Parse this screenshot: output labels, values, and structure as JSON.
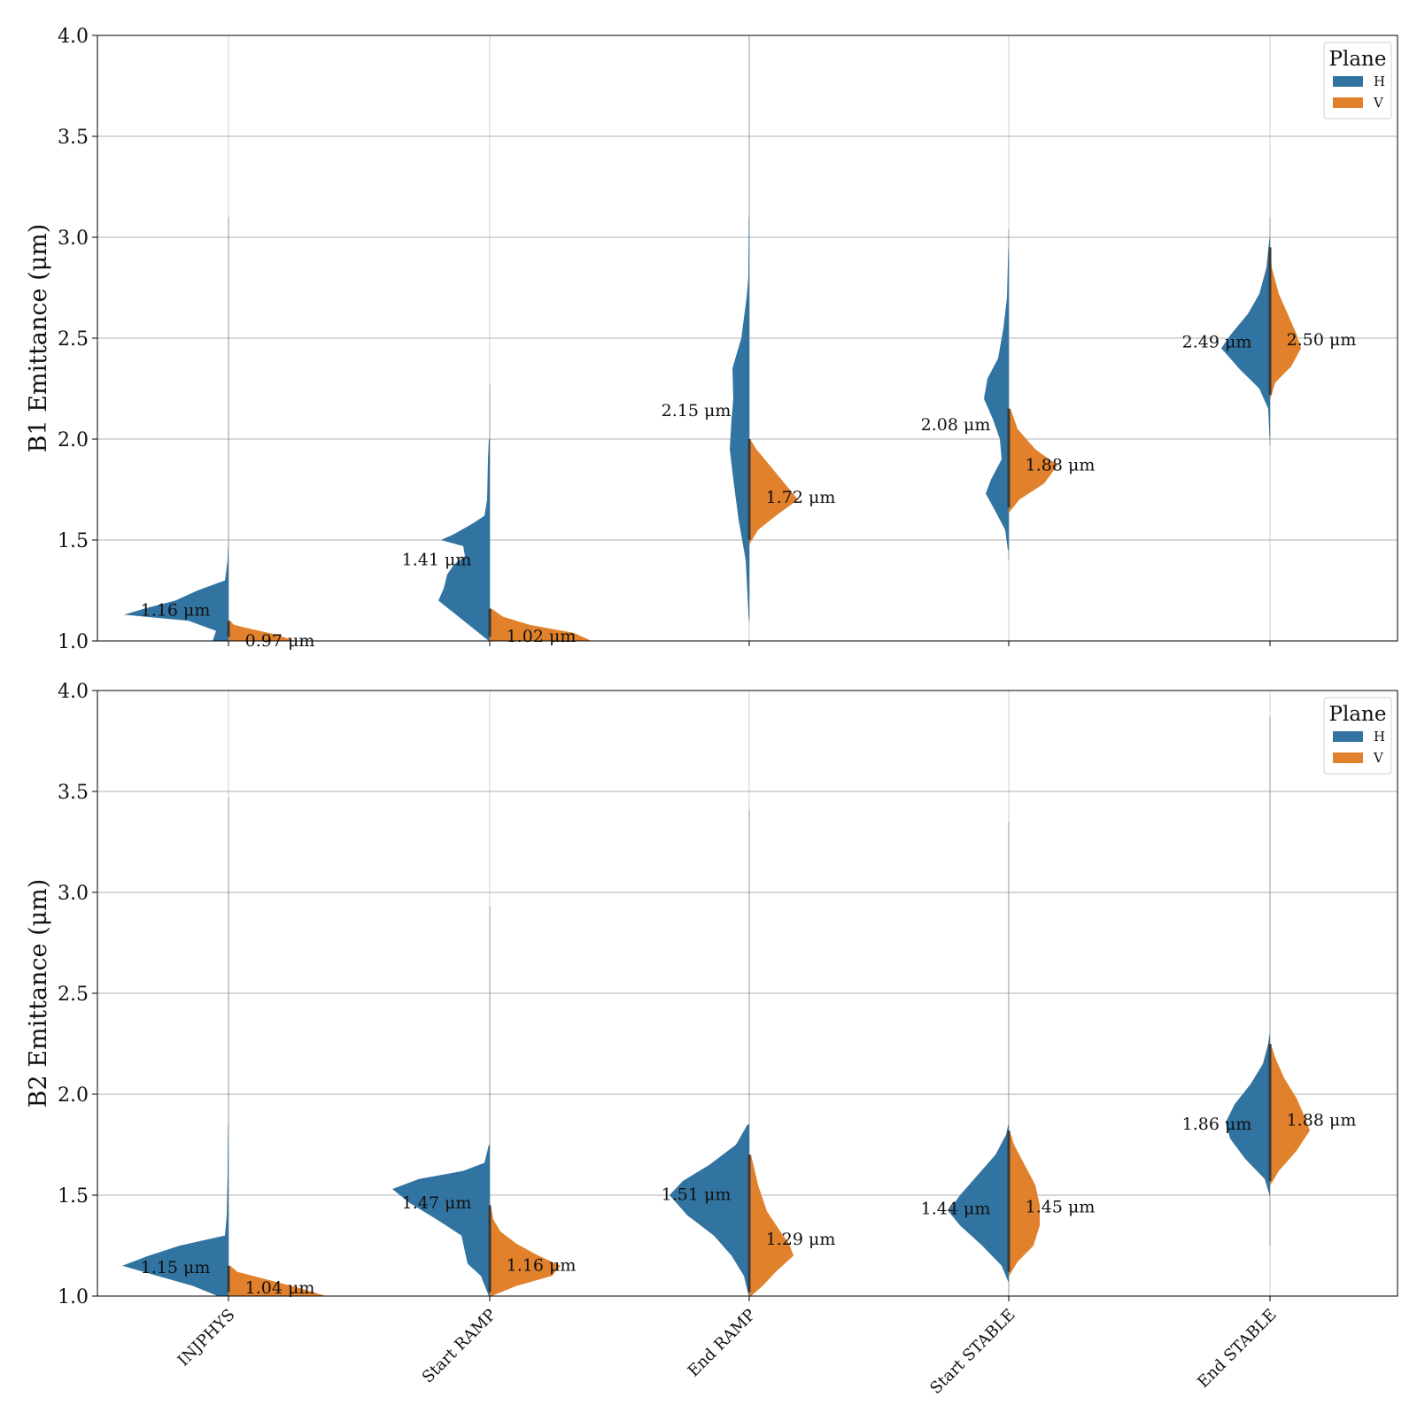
{
  "chart_data": [
    {
      "type": "violin",
      "ylabel": "B1 Emittance (μm)",
      "ylim": [
        1.0,
        4.0
      ],
      "yticks": [
        "1.0",
        "1.5",
        "2.0",
        "2.5",
        "3.0",
        "3.5",
        "4.0"
      ],
      "grid": true,
      "legend": {
        "title": "Plane",
        "placement": "top-right",
        "entries": [
          "H",
          "V"
        ]
      },
      "categories": [
        "INJPHYS",
        "Start RAMP",
        "End RAMP",
        "Start STABLE",
        "End STABLE"
      ],
      "series": [
        {
          "name": "H",
          "color": "#3274a1",
          "median_labels": [
            "1.16 μm",
            "1.41 μm",
            "2.15 μm",
            "2.08 μm",
            "2.49 μm"
          ],
          "medians": [
            1.16,
            1.41,
            2.15,
            2.08,
            2.49
          ]
        },
        {
          "name": "V",
          "color": "#e1812c",
          "median_labels": [
            "0.97 μm",
            "1.02 μm",
            "1.72 μm",
            "1.88 μm",
            "2.50 μm"
          ],
          "medians": [
            0.97,
            1.02,
            1.72,
            1.88,
            2.5
          ]
        }
      ]
    },
    {
      "type": "violin",
      "ylabel": "B2 Emittance (μm)",
      "ylim": [
        1.0,
        4.0
      ],
      "yticks": [
        "1.0",
        "1.5",
        "2.0",
        "2.5",
        "3.0",
        "3.5",
        "4.0"
      ],
      "grid": true,
      "legend": {
        "title": "Plane",
        "placement": "top-right",
        "entries": [
          "H",
          "V"
        ]
      },
      "categories": [
        "INJPHYS",
        "Start RAMP",
        "End RAMP",
        "Start STABLE",
        "End STABLE"
      ],
      "series": [
        {
          "name": "H",
          "color": "#3274a1",
          "median_labels": [
            "1.15 μm",
            "1.47 μm",
            "1.51 μm",
            "1.44 μm",
            "1.86 μm"
          ],
          "medians": [
            1.15,
            1.47,
            1.51,
            1.44,
            1.86
          ]
        },
        {
          "name": "V",
          "color": "#e1812c",
          "median_labels": [
            "1.04 μm",
            "1.16 μm",
            "1.29 μm",
            "1.45 μm",
            "1.88 μm"
          ],
          "medians": [
            1.04,
            1.16,
            1.29,
            1.45,
            1.88
          ]
        }
      ]
    }
  ]
}
